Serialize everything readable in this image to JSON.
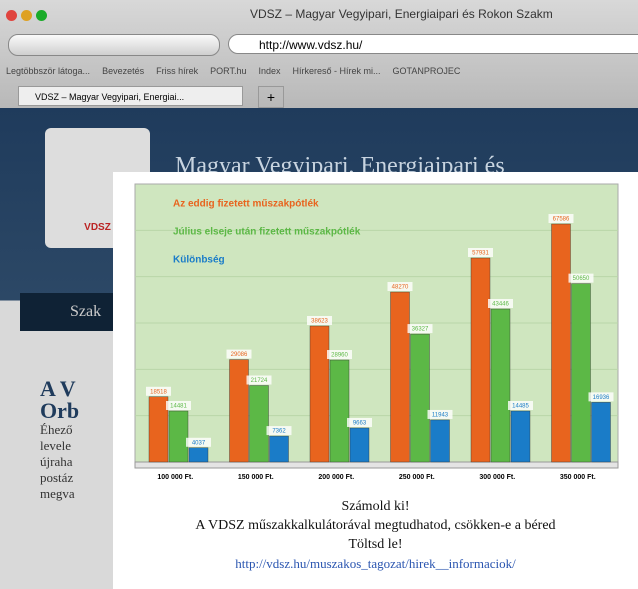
{
  "browser": {
    "window_title": "VDSZ – Magyar Vegyipari, Energiaipari és Rokon Szakm",
    "url": "http://www.vdsz.hu/",
    "bookmarks": [
      "Legtöbbször látoga...",
      "Bevezetés",
      "Friss hírek",
      "PORT.hu",
      "Index",
      "Hírkereső - Hírek mi...",
      "GOTANPROJEC"
    ],
    "tab": "VDSZ – Magyar Vegyipari, Energiai...",
    "new_tab": "+"
  },
  "website": {
    "logo": "VDSZ",
    "header": "Magyar Vegyipari, Energiaipari és",
    "menu": "Szak",
    "heading": [
      "A V",
      "Orb"
    ],
    "body": [
      "Éhező",
      "levele",
      "újraha",
      "postáz",
      "megva"
    ]
  },
  "chart_data": {
    "type": "bar",
    "categories": [
      "100 000 Ft.",
      "150 000 Ft.",
      "200 000 Ft.",
      "250 000 Ft.",
      "300 000 Ft.",
      "350 000 Ft."
    ],
    "series": [
      {
        "name": "Az eddig fizetett műszakpótlék",
        "color": "#e8641e",
        "values": [
          18518,
          29086,
          38623,
          48270,
          57931,
          67586
        ]
      },
      {
        "name": "Július elseje után fizetett műszakpótlék",
        "color": "#5cb846",
        "values": [
          14481,
          21724,
          28960,
          36327,
          43446,
          50650
        ]
      },
      {
        "name": "Különbség",
        "color": "#1a7cc8",
        "values": [
          4037,
          7362,
          9663,
          11943,
          14485,
          16936
        ]
      }
    ],
    "caption": [
      "Számold ki!",
      "A VDSZ műszakkalkulátorával megtudhatod, csökken-e a béred",
      "Töltsd le!",
      "http://vdsz.hu/muszakos_tagozat/hirek__informaciok/"
    ]
  }
}
